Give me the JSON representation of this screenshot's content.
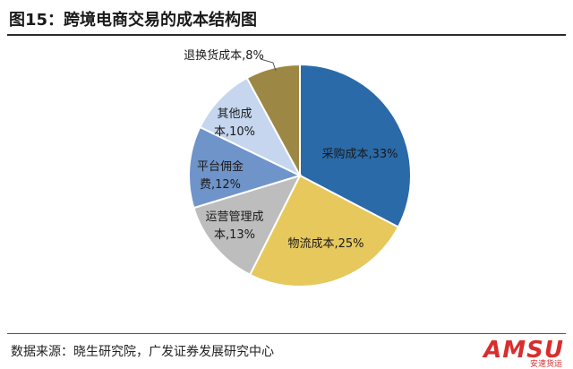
{
  "title": "图15：跨境电商交易的成本结构图",
  "source": "数据来源：晓生研究院，广发证券发展研究中心",
  "watermark": {
    "brand": "AMSU",
    "sub": "安速货运"
  },
  "chart_data": {
    "type": "pie",
    "title": "图15：跨境电商交易的成本结构图",
    "slices": [
      {
        "label": [
          "采购成本,33%"
        ],
        "value": 33,
        "color": "#2a6aa8"
      },
      {
        "label": [
          "物流成本,25%"
        ],
        "value": 25,
        "color": "#e6c85c"
      },
      {
        "label": [
          "运营管理成",
          "本,13%"
        ],
        "value": 13,
        "color": "#bdbdbd"
      },
      {
        "label": [
          "平台佣金",
          "费,12%"
        ],
        "value": 12,
        "color": "#6f94c9"
      },
      {
        "label": [
          "其他成",
          "本,10%"
        ],
        "value": 10,
        "color": "#c5d6ee"
      },
      {
        "label": [
          "退换货成本,8%"
        ],
        "value": 8,
        "color": "#9c8844"
      }
    ]
  }
}
